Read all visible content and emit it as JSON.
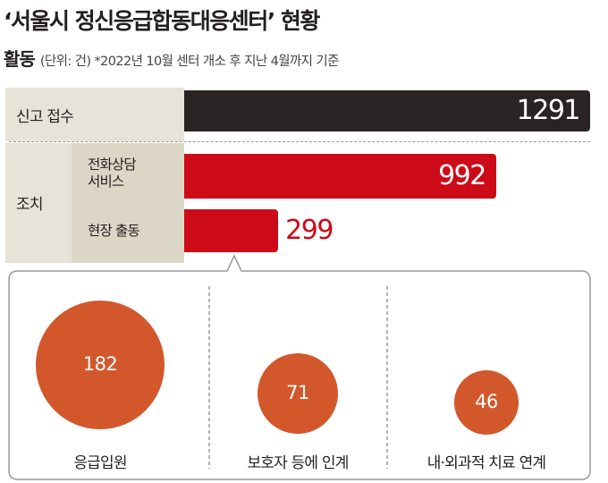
{
  "title": "‘서울시 정신응급합동대응센터’ 현황",
  "subtitle": {
    "heading": "활동",
    "note": "(단위: 건) *2022년 10월 센터 개소 후 지난 4월까지 기준"
  },
  "colors": {
    "dark_bar": "#2a2324",
    "red_bar": "#cd0a17",
    "circle": "#d2582c",
    "panel": "#e8e3d8",
    "panel_inner": "#dcd6c7"
  },
  "labels": {
    "report": "신고 접수",
    "action": "조치",
    "phone_line1": "전화상담",
    "phone_line2": "서비스",
    "field": "현장 출동"
  },
  "chart_data": [
    {
      "type": "bar",
      "orientation": "horizontal",
      "categories": [
        "신고 접수",
        "전화상담 서비스",
        "현장 출동"
      ],
      "groups": {
        "조치": [
          "전화상담 서비스",
          "현장 출동"
        ]
      },
      "values": [
        1291,
        992,
        299
      ],
      "display": [
        "1291",
        "992",
        "299"
      ],
      "bar_colors": [
        "#2a2324",
        "#cd0a17",
        "#cd0a17"
      ]
    },
    {
      "type": "bubble",
      "breakdown_of": "현장 출동",
      "categories": [
        "응급입원",
        "보호자 등에 인계",
        "내·외과적 치료 연계"
      ],
      "values": [
        182,
        71,
        46
      ],
      "display": [
        "182",
        "71",
        "46"
      ]
    }
  ]
}
